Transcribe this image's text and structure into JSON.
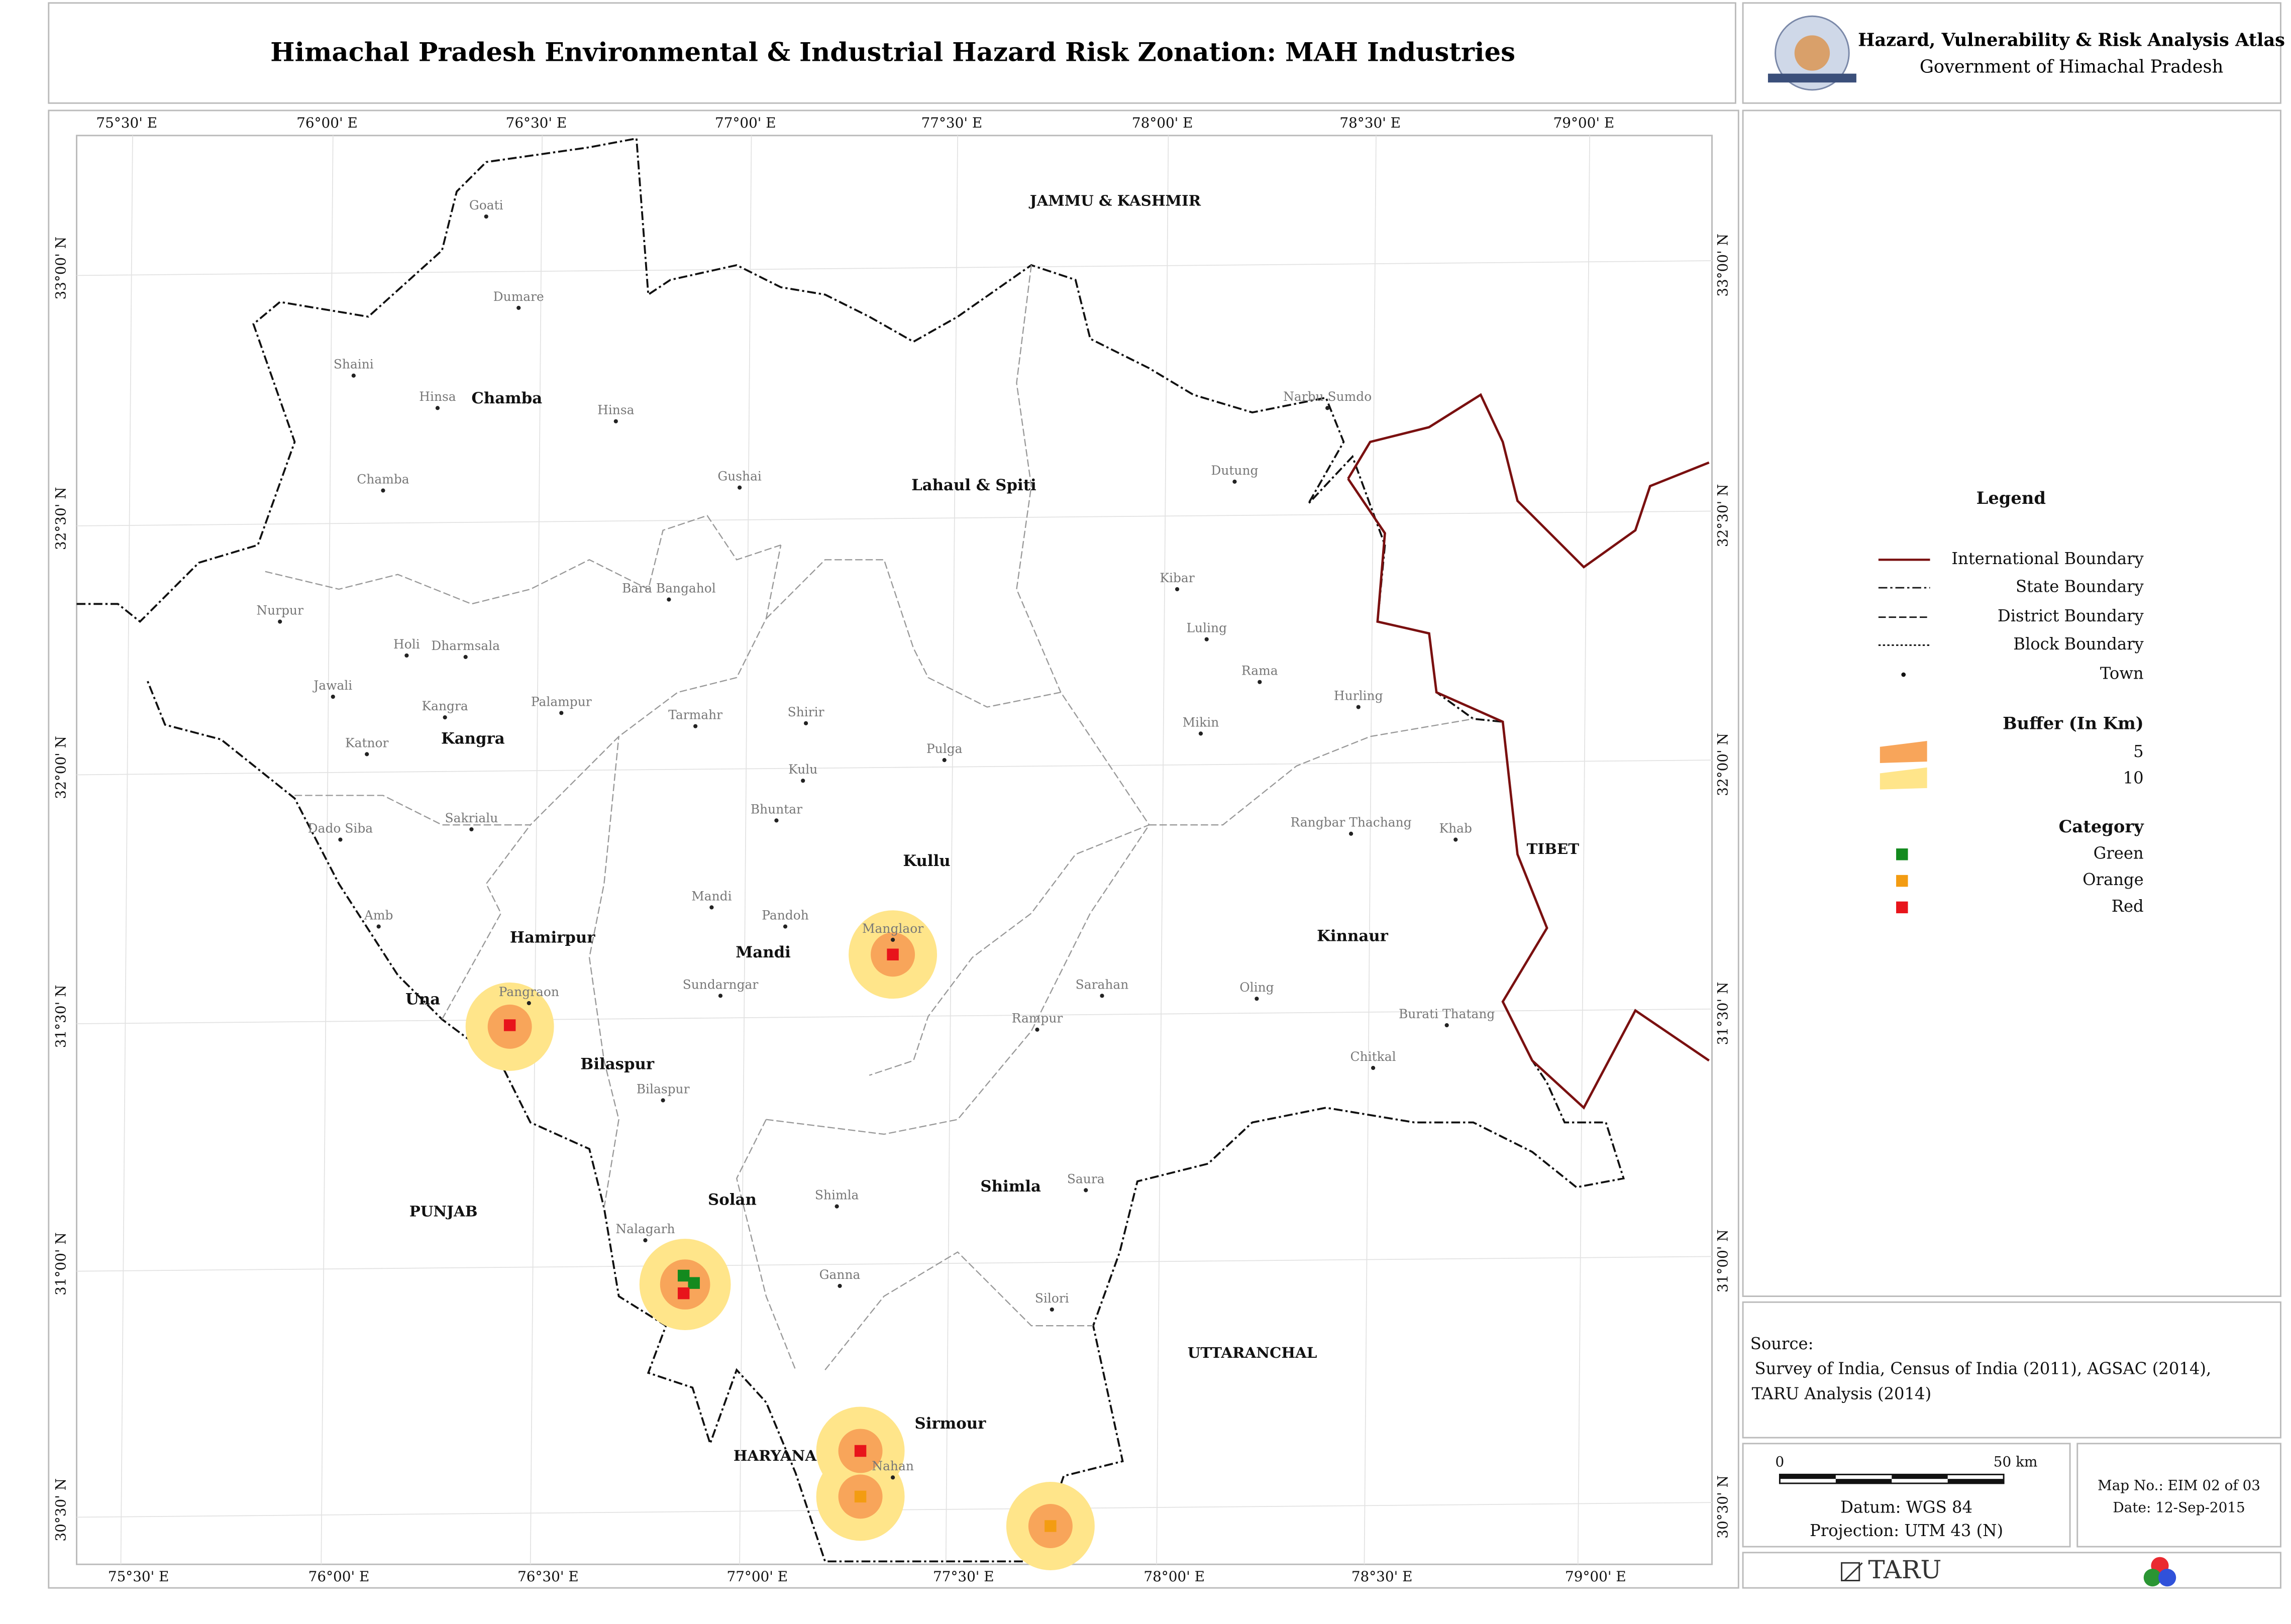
{
  "header": {
    "title": "Himachal Pradesh Environmental & Industrial Hazard Risk Zonation: MAH Industries",
    "atlas_title": "Hazard, Vulnerability & Risk Analysis Atlas",
    "government": "Government of Himachal Pradesh"
  },
  "map": {
    "longitude_labels": [
      "75°30' E",
      "76°00' E",
      "76°30' E",
      "77°00' E",
      "77°30' E",
      "78°00' E",
      "78°30' E",
      "79°00' E"
    ],
    "latitude_labels": [
      "33°00' N",
      "32°30' N",
      "32°00' N",
      "31°30' N",
      "31°00' N",
      "30°30' N"
    ],
    "regions": [
      "JAMMU & KASHMIR",
      "TIBET",
      "PUNJAB",
      "HARYANA",
      "UTTARANCHAL"
    ],
    "districts": [
      "Chamba",
      "Lahaul & Spiti",
      "Kangra",
      "Kullu",
      "Hamirpur",
      "Una",
      "Mandi",
      "Kinnaur",
      "Bilaspur",
      "Solan",
      "Shimla",
      "Sirmour"
    ],
    "towns": [
      "Goati",
      "Dumare",
      "Shaini",
      "Hinsa",
      "Hinsa",
      "Gushai",
      "Chamba",
      "Narbu Sumdo",
      "Dutung",
      "Kibar",
      "Bara Bangahol",
      "Nurpur",
      "Luling",
      "Holi",
      "Dharmsala",
      "Rama",
      "Jawali",
      "Hurling",
      "Tarmahr",
      "Shirir",
      "Kangra",
      "Palampur",
      "Mikin",
      "Katnor",
      "Pulga",
      "Kulu",
      "Bhuntar",
      "Sakrialu",
      "Rangbar Thachang",
      "Khab",
      "Dado Siba",
      "Amb",
      "Mandi",
      "Pandoh",
      "Manglaor",
      "Sundarngar",
      "Sarahan",
      "Oling",
      "Pangraon",
      "Rampur",
      "Burati Thatang",
      "Chitkal",
      "Bilaspur",
      "Shimla",
      "Saura",
      "Nalagarh",
      "Ganna",
      "Silori",
      "Nahan"
    ]
  },
  "legend": {
    "title": "Legend",
    "lines": [
      "International Boundary",
      "State Boundary",
      "District Boundary",
      "Block Boundary",
      "Town"
    ],
    "buffer_title": "Buffer (In Km)",
    "buffers": [
      "5",
      "10"
    ],
    "category_title": "Category",
    "categories": [
      "Green",
      "Orange",
      "Red"
    ]
  },
  "source": {
    "label": "Source:",
    "line1": "Survey of India, Census of India (2011), AGSAC (2014),",
    "line2": "TARU Analysis (2014)"
  },
  "scale": {
    "start": "0",
    "end": "50 km",
    "datum": "Datum: WGS 84",
    "projection": "Projection: UTM 43 (N)"
  },
  "map_info": {
    "map_no": "Map No.: EIM 02 of 03",
    "date": "Date: 12-Sep-2015"
  },
  "footer": {
    "logo_text": "TARU"
  }
}
